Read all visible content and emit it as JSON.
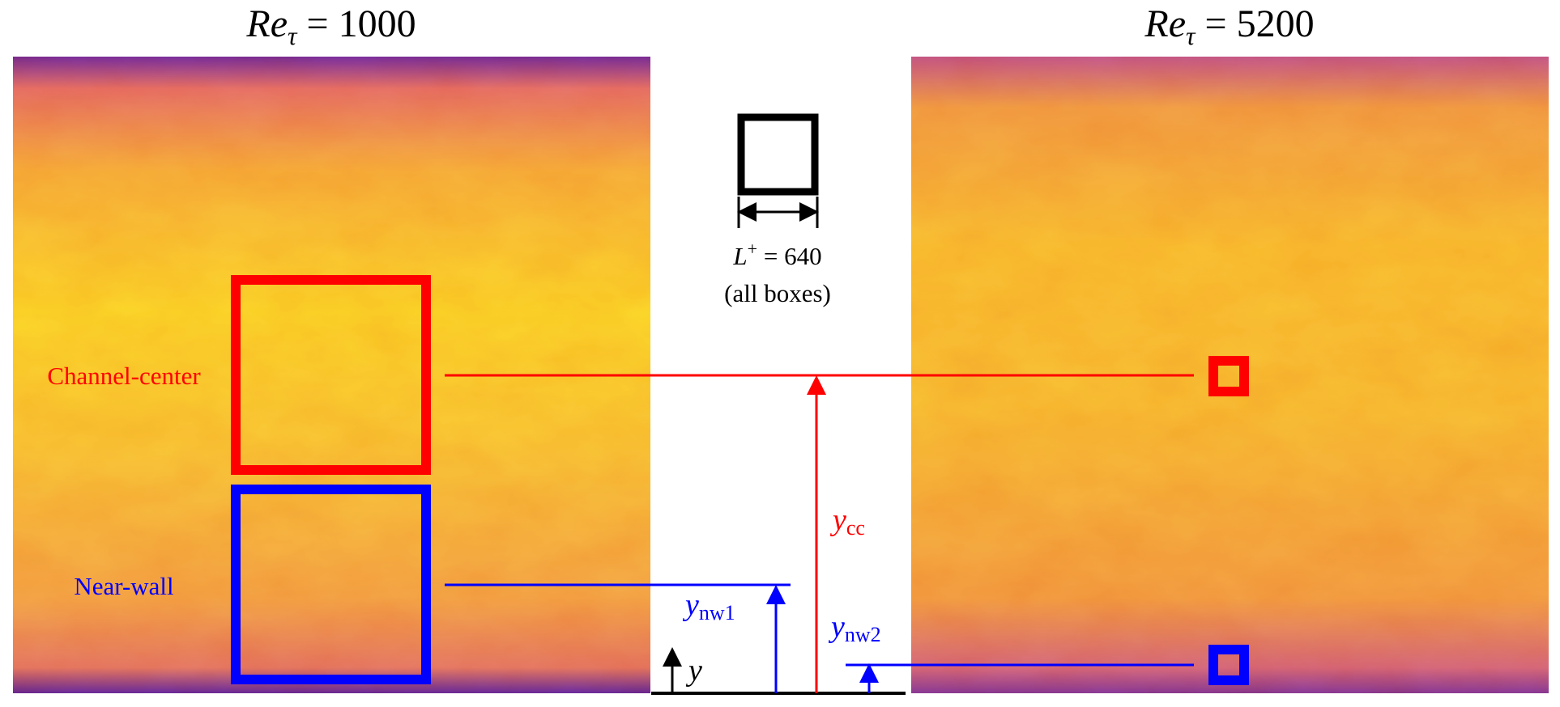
{
  "panels": [
    {
      "title": {
        "base": "Re",
        "sub": "τ",
        "rest": " = 1000"
      }
    },
    {
      "title": {
        "base": "Re",
        "sub": "τ",
        "rest": " = 5200"
      }
    }
  ],
  "legend_box": {
    "label": {
      "base": "L",
      "sup": "+",
      "rest": " = 640"
    },
    "note": "(all boxes)"
  },
  "regions": [
    {
      "label": "Channel-center"
    },
    {
      "label": "Near-wall"
    }
  ],
  "heights": [
    {
      "base": "y",
      "sub": "cc"
    },
    {
      "base": "y",
      "sub": "nw1"
    },
    {
      "base": "y",
      "sub": "nw2"
    },
    {
      "base": "y"
    }
  ]
}
